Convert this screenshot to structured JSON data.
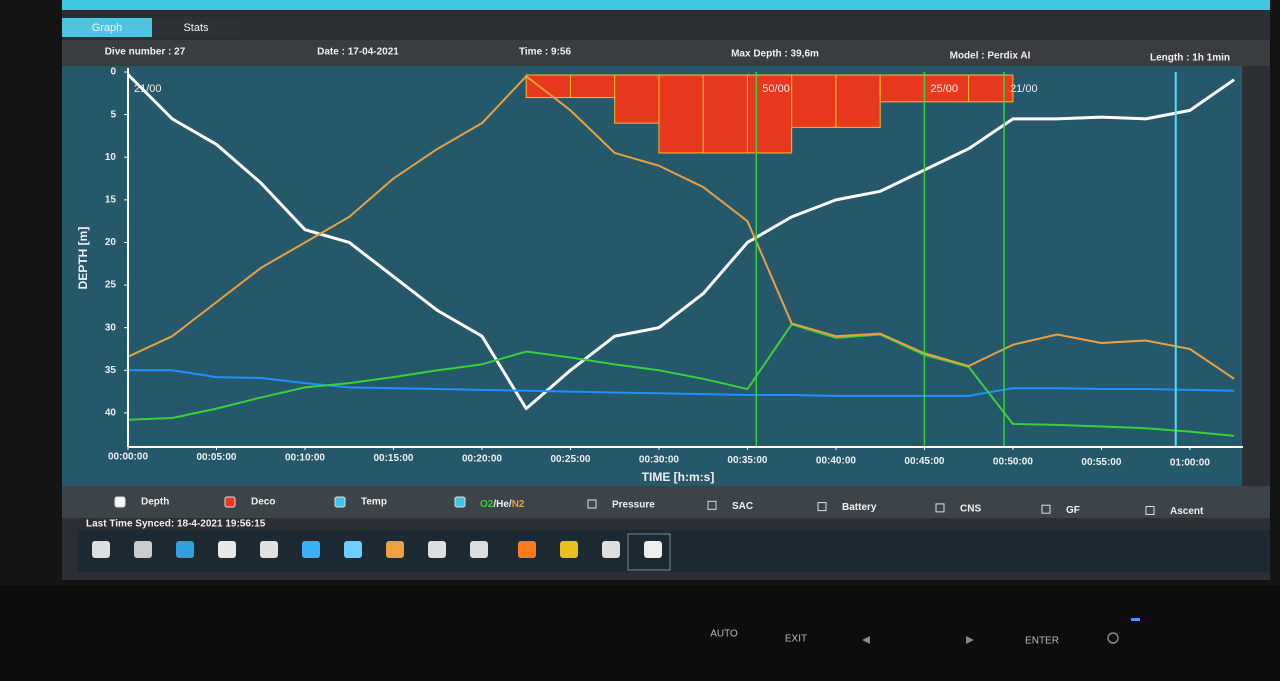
{
  "tabs": [
    "Graph",
    "Stats"
  ],
  "header": [
    "Dive number : 27",
    "Date : 17-04-2021",
    "Time : 9:56",
    "Max Depth : 39,6m",
    "Model : Perdix AI",
    "Length : 1h 1min"
  ],
  "chart_data": {
    "type": "line",
    "y_label": "DEPTH [m]",
    "x_label": "TIME [h:m:s]",
    "y_inverted": true,
    "x": [
      0,
      2.5,
      5,
      7.5,
      10,
      12.5,
      15,
      17.5,
      20,
      22.5,
      25,
      27.5,
      30,
      32.5,
      35,
      37.5,
      40,
      42.5,
      45,
      47.5,
      50,
      52.5,
      55,
      57.5,
      60,
      62.5
    ],
    "xlim": [
      0,
      63
    ],
    "xticks": [
      {
        "value": 0,
        "label": "00:00:00"
      },
      {
        "value": 5,
        "label": "00:05:00"
      },
      {
        "value": 10,
        "label": "00:10:00"
      },
      {
        "value": 15,
        "label": "00:15:00"
      },
      {
        "value": 20,
        "label": "00:20:00"
      },
      {
        "value": 25,
        "label": "00:25:00"
      },
      {
        "value": 30,
        "label": "00:30:00"
      },
      {
        "value": 35,
        "label": "00:35:00"
      },
      {
        "value": 40,
        "label": "00:40:00"
      },
      {
        "value": 45,
        "label": "00:45:00"
      },
      {
        "value": 50,
        "label": "00:50:00"
      },
      {
        "value": 55,
        "label": "00:55:00"
      },
      {
        "value": 60,
        "label": "01:00:00"
      }
    ],
    "ylim": [
      0,
      44
    ],
    "yticks": [
      0,
      5,
      10,
      15,
      20,
      25,
      30,
      35,
      40
    ],
    "series": [
      {
        "name": "Depth",
        "type": "line",
        "color": "#ffffff",
        "values": [
          0.3,
          5.5,
          8.5,
          13,
          18.5,
          20,
          24,
          28,
          31,
          39.5,
          35,
          31,
          30,
          26,
          20,
          17,
          15,
          14,
          11.5,
          9,
          5.5,
          5.5,
          5.3,
          5.5,
          4.5,
          0.9
        ]
      },
      {
        "name": "Deco",
        "type": "area",
        "color": "#e8381e",
        "values": [
          null,
          null,
          null,
          null,
          null,
          null,
          null,
          null,
          null,
          3,
          3,
          6,
          9.5,
          9.5,
          9.5,
          6.5,
          6.5,
          3.5,
          3.5,
          3.5,
          null,
          null,
          null,
          null,
          null,
          null
        ]
      },
      {
        "name": "Temp",
        "type": "line",
        "color": "#1e90ff",
        "values": [
          35,
          35,
          35.8,
          35.9,
          36.5,
          37,
          37.1,
          37.2,
          37.3,
          37.4,
          37.5,
          37.6,
          37.7,
          37.8,
          37.9,
          37.9,
          38,
          38,
          38,
          38,
          37.1,
          37.1,
          37.2,
          37.2,
          37.3,
          37.4
        ]
      },
      {
        "name": "O2",
        "type": "line",
        "color": "#3ccf3c",
        "values": [
          40.8,
          40.6,
          39.5,
          38.2,
          37,
          36.5,
          35.8,
          35,
          34.3,
          32.8,
          33.5,
          34.3,
          35,
          36,
          37.2,
          29.6,
          31.2,
          30.8,
          33.2,
          34.6,
          41.3,
          41.4,
          41.6,
          41.8,
          42.2,
          42.7
        ]
      },
      {
        "name": "N2",
        "type": "line",
        "color": "#e8a040",
        "values": [
          33.4,
          31,
          27,
          23,
          20,
          17,
          12.5,
          9,
          6,
          0.5,
          4.5,
          9.5,
          11,
          13.5,
          17.5,
          29.5,
          31,
          30.7,
          33,
          34.5,
          32,
          30.8,
          31.8,
          31.5,
          32.5,
          36
        ]
      }
    ],
    "gas_switches": [
      {
        "x": 0,
        "label": "21/00"
      },
      {
        "x": 35.5,
        "label": "50/00",
        "color": "#3ccf3c"
      },
      {
        "x": 45,
        "label": "25/00",
        "color": "#3ccf3c"
      },
      {
        "x": 49.5,
        "label": "21/00",
        "color": "#3ccf3c"
      }
    ],
    "markers": [
      {
        "x": 59.2,
        "color": "#5fd8f0"
      }
    ]
  },
  "legend": {
    "he_label": "/He/",
    "options": [
      "Pressure",
      "SAC",
      "Battery",
      "CNS",
      "GF",
      "Ascent"
    ]
  },
  "status": "Last Time Synced: 18-4-2021 19:56:15",
  "monitor_buttons": [
    "AUTO",
    "EXIT",
    "ENTER"
  ]
}
